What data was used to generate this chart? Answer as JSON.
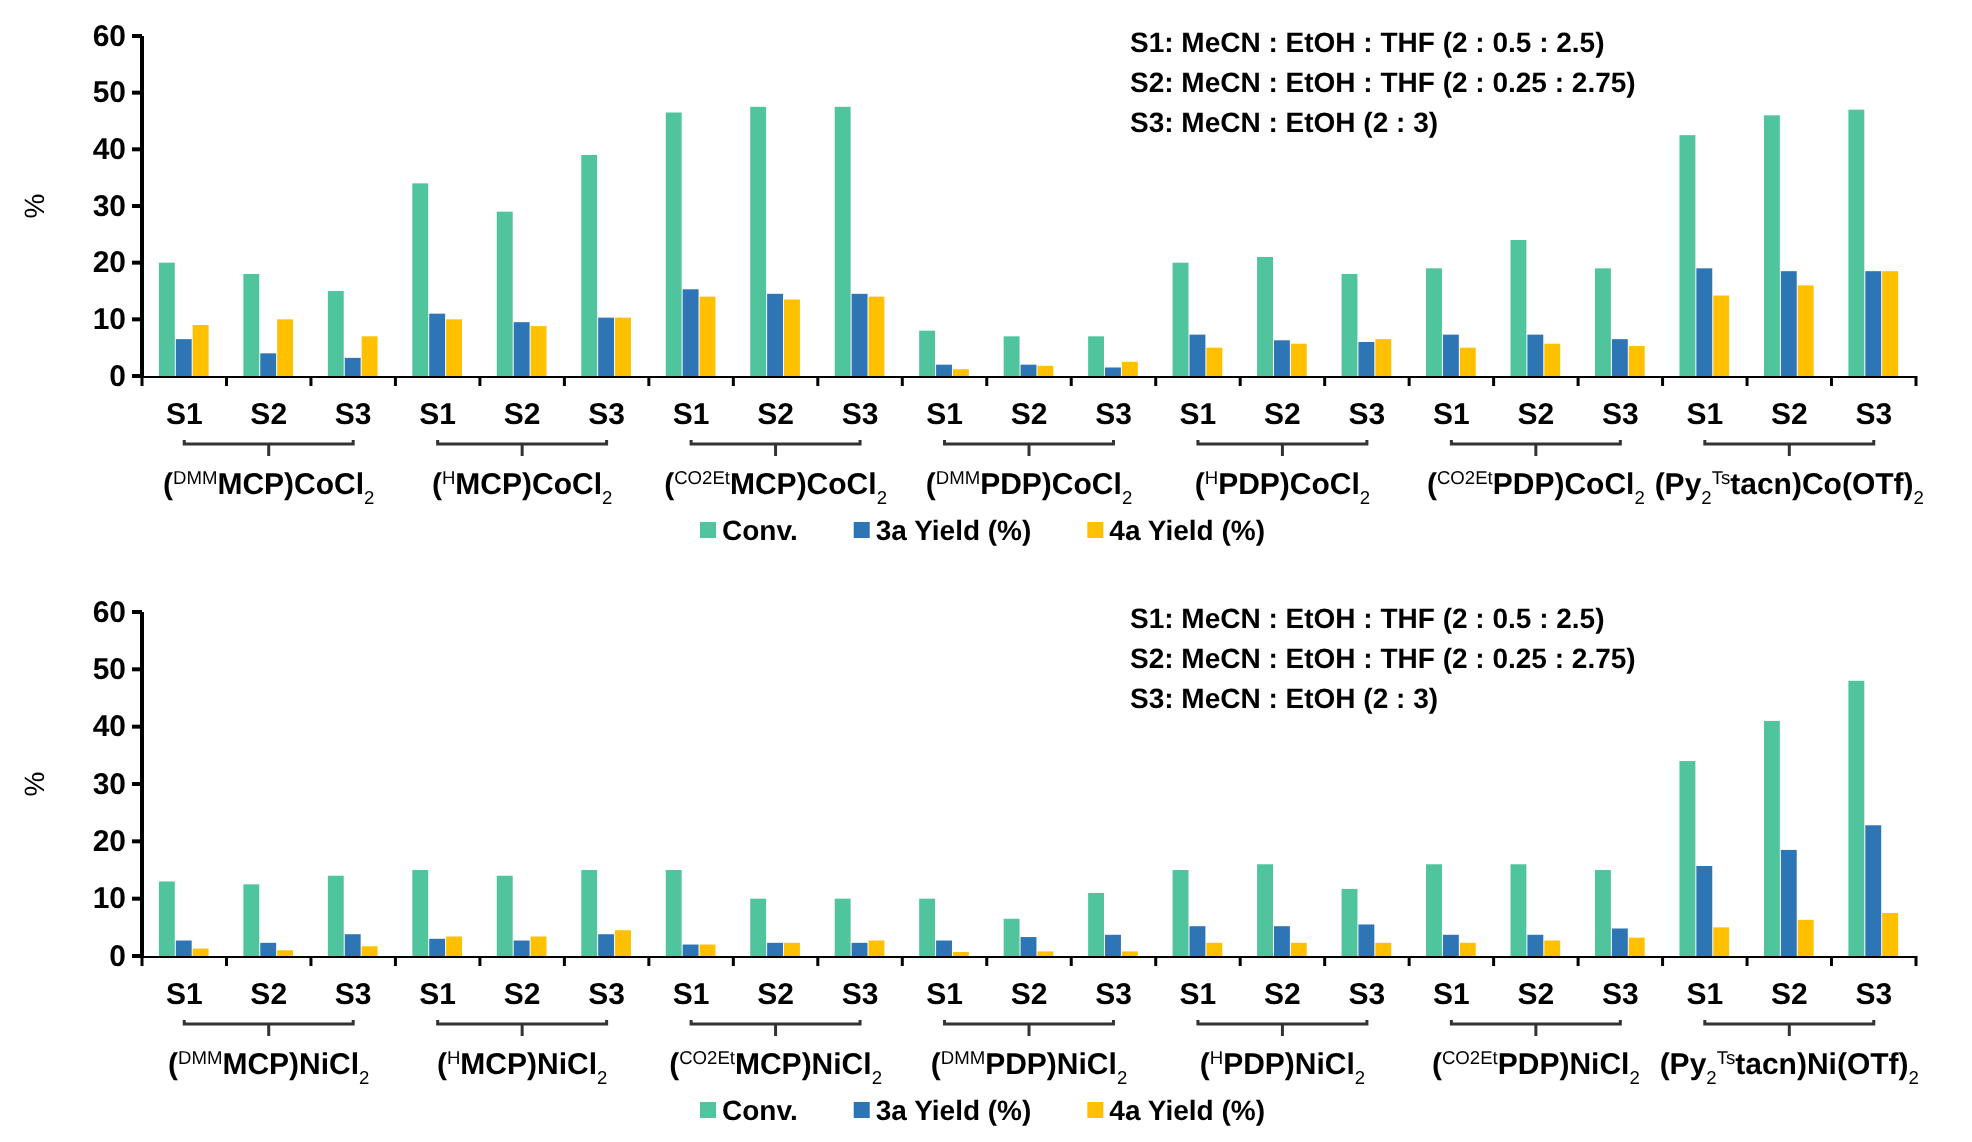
{
  "chart_data": [
    {
      "type": "bar",
      "ylabel": "%",
      "categories": [
        "S1",
        "S2",
        "S3",
        "S1",
        "S2",
        "S3",
        "S1",
        "S2",
        "S3",
        "S1",
        "S2",
        "S3",
        "S1",
        "S2",
        "S3",
        "S1",
        "S2",
        "S3",
        "S1",
        "S2",
        "S3"
      ],
      "series": [
        {
          "name": "Conv.",
          "color": "#50c49c",
          "values": [
            20,
            18,
            15,
            34,
            29,
            39,
            46.5,
            47.5,
            47.5,
            8,
            7,
            7,
            20,
            21,
            18,
            19,
            24,
            19,
            42.5,
            46,
            47
          ]
        },
        {
          "name": "3a Yield (%)",
          "color": "#2e75b6",
          "values": [
            6.5,
            4,
            3.2,
            11,
            9.5,
            10.3,
            15.3,
            14.5,
            14.5,
            2,
            2,
            1.5,
            7.3,
            6.3,
            6,
            7.3,
            7.3,
            6.5,
            19,
            18.5,
            18.5
          ]
        },
        {
          "name": "4a Yield (%)",
          "color": "#ffc000",
          "values": [
            9,
            10,
            7,
            10,
            8.8,
            10.3,
            14,
            13.5,
            14,
            1.2,
            1.8,
            2.5,
            5,
            5.7,
            6.5,
            5,
            5.7,
            5.3,
            14.2,
            16,
            18.5
          ]
        }
      ],
      "ylim": [
        0,
        60
      ],
      "yticks": [
        0,
        10,
        20,
        30,
        40,
        50,
        60
      ],
      "legend": "bottom",
      "annotations": [
        "($^{DMM}$MCP)CoCl$_{2}$",
        "($^{H}$MCP)CoCl$_{2}$",
        "($^{CO2Et}$MCP)CoCl$_{2}$",
        "($^{DMM}$PDP)CoCl$_{2}$",
        "($^{H}$PDP)CoCl$_{2}$",
        "($^{CO2Et}$PDP)CoCl$_{2}$",
        "(Py$_{2}$$^{Ts}$tacn)Co(OTf)$_{2}$",
        "S1: MeCN : EtOH : THF (2 : 0.5 : 2.5)",
        "S2: MeCN : EtOH : THF (2 : 0.25 : 2.75)",
        "S3: MeCN : EtOH  (2 : 3)"
      ]
    },
    {
      "type": "bar",
      "ylabel": "%",
      "categories": [
        "S1",
        "S2",
        "S3",
        "S1",
        "S2",
        "S3",
        "S1",
        "S2",
        "S3",
        "S1",
        "S2",
        "S3",
        "S1",
        "S2",
        "S3",
        "S1",
        "S2",
        "S3",
        "S1",
        "S2",
        "S3"
      ],
      "series": [
        {
          "name": "Conv.",
          "color": "#50c49c",
          "values": [
            13,
            12.5,
            14,
            15,
            14,
            15,
            15,
            10,
            10,
            10,
            6.5,
            11,
            15,
            16,
            11.7,
            16,
            16,
            15,
            34,
            41,
            48
          ]
        },
        {
          "name": "3a Yield (%)",
          "color": "#2e75b6",
          "values": [
            2.7,
            2.3,
            3.8,
            3,
            2.7,
            3.8,
            2,
            2.3,
            2.3,
            2.7,
            3.3,
            3.7,
            5.2,
            5.2,
            5.5,
            3.7,
            3.7,
            4.8,
            15.7,
            18.5,
            22.8
          ]
        },
        {
          "name": "4a Yield (%)",
          "color": "#ffc000",
          "values": [
            1.3,
            1,
            1.7,
            3.4,
            3.4,
            4.5,
            2,
            2.3,
            2.7,
            0.7,
            0.8,
            0.8,
            2.3,
            2.3,
            2.3,
            2.3,
            2.7,
            3.2,
            5,
            6.3,
            7.5
          ]
        }
      ],
      "ylim": [
        0,
        60
      ],
      "yticks": [
        0,
        10,
        20,
        30,
        40,
        50,
        60
      ],
      "legend": "bottom",
      "annotations": [
        "($^{DMM}$MCP)NiCl$_{2}$",
        "($^{H}$MCP)NiCl$_{2}$",
        "($^{CO2Et}$MCP)NiCl$_{2}$",
        "($^{DMM}$PDP)NiCl$_{2}$",
        "($^{H}$PDP)NiCl$_{2}$",
        "($^{CO2Et}$PDP)NiCl$_{2}$",
        "(Py$_{2}$$^{Ts}$tacn)Ni(OTf)$_{2}$",
        "S1: MeCN : EtOH : THF (2 : 0.5 : 2.5)",
        "S2: MeCN : EtOH : THF (2 : 0.25 : 2.75)",
        "S3: MeCN : EtOH  (2 : 3)"
      ]
    }
  ]
}
